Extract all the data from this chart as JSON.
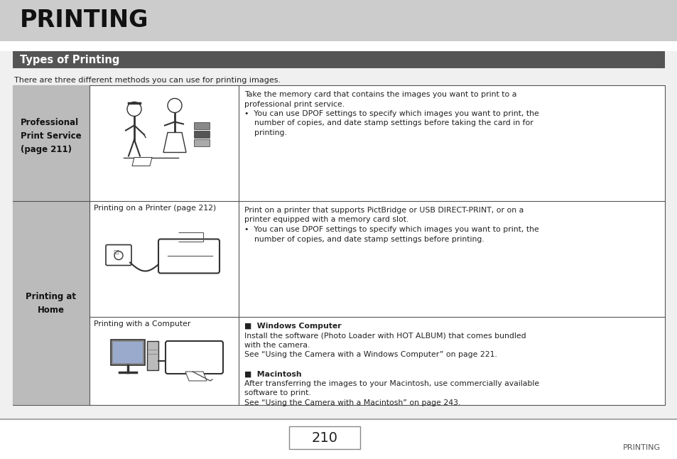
{
  "title": "PRINTING",
  "title_bg": "#cccccc",
  "section_title": "Types of Printing",
  "section_bg": "#555555",
  "section_text_color": "#ffffff",
  "intro_text": "There are three different methods you can use for printing images.",
  "bg_color": "#f0f0f0",
  "table_border": "#555555",
  "left_col_bg": "#bbbbbb",
  "page_number": "210",
  "footer_text": "PRINTING",
  "row1_label": "Professional\nPrint Service\n(page 211)",
  "row2_label": "Printing at\nHome",
  "row1_desc_line1": "Take the memory card that contains the images you want to print to a",
  "row1_desc_line2": "professional print service.",
  "row1_desc_bullet": "•  You can use DPOF settings to specify which images you want to print, the",
  "row1_desc_bullet2": "    number of copies, and date stamp settings before taking the card in for",
  "row1_desc_bullet3": "    printing.",
  "row2a_sublabel": "Printing on a Printer (page 212)",
  "row2a_desc1": "Print on a printer that supports PictBridge or USB DIRECT-PRINT, or on a",
  "row2a_desc2": "printer equipped with a memory card slot.",
  "row2a_bullet1": "•  You can use DPOF settings to specify which images you want to print, the",
  "row2a_bullet2": "    number of copies, and date stamp settings before printing.",
  "row2b_sublabel": "Printing with a Computer",
  "win_header": "■  Windows Computer",
  "win_line1": "Install the software (Photo Loader with HOT ALBUM) that comes bundled",
  "win_line2": "with the camera.",
  "win_line3": "See “Using the Camera with a Windows Computer” on page 221.",
  "mac_header": "■  Macintosh",
  "mac_line1": "After transferring the images to your Macintosh, use commercially available",
  "mac_line2": "software to print.",
  "mac_line3": "See “Using the Camera with a Macintosh” on page 243."
}
